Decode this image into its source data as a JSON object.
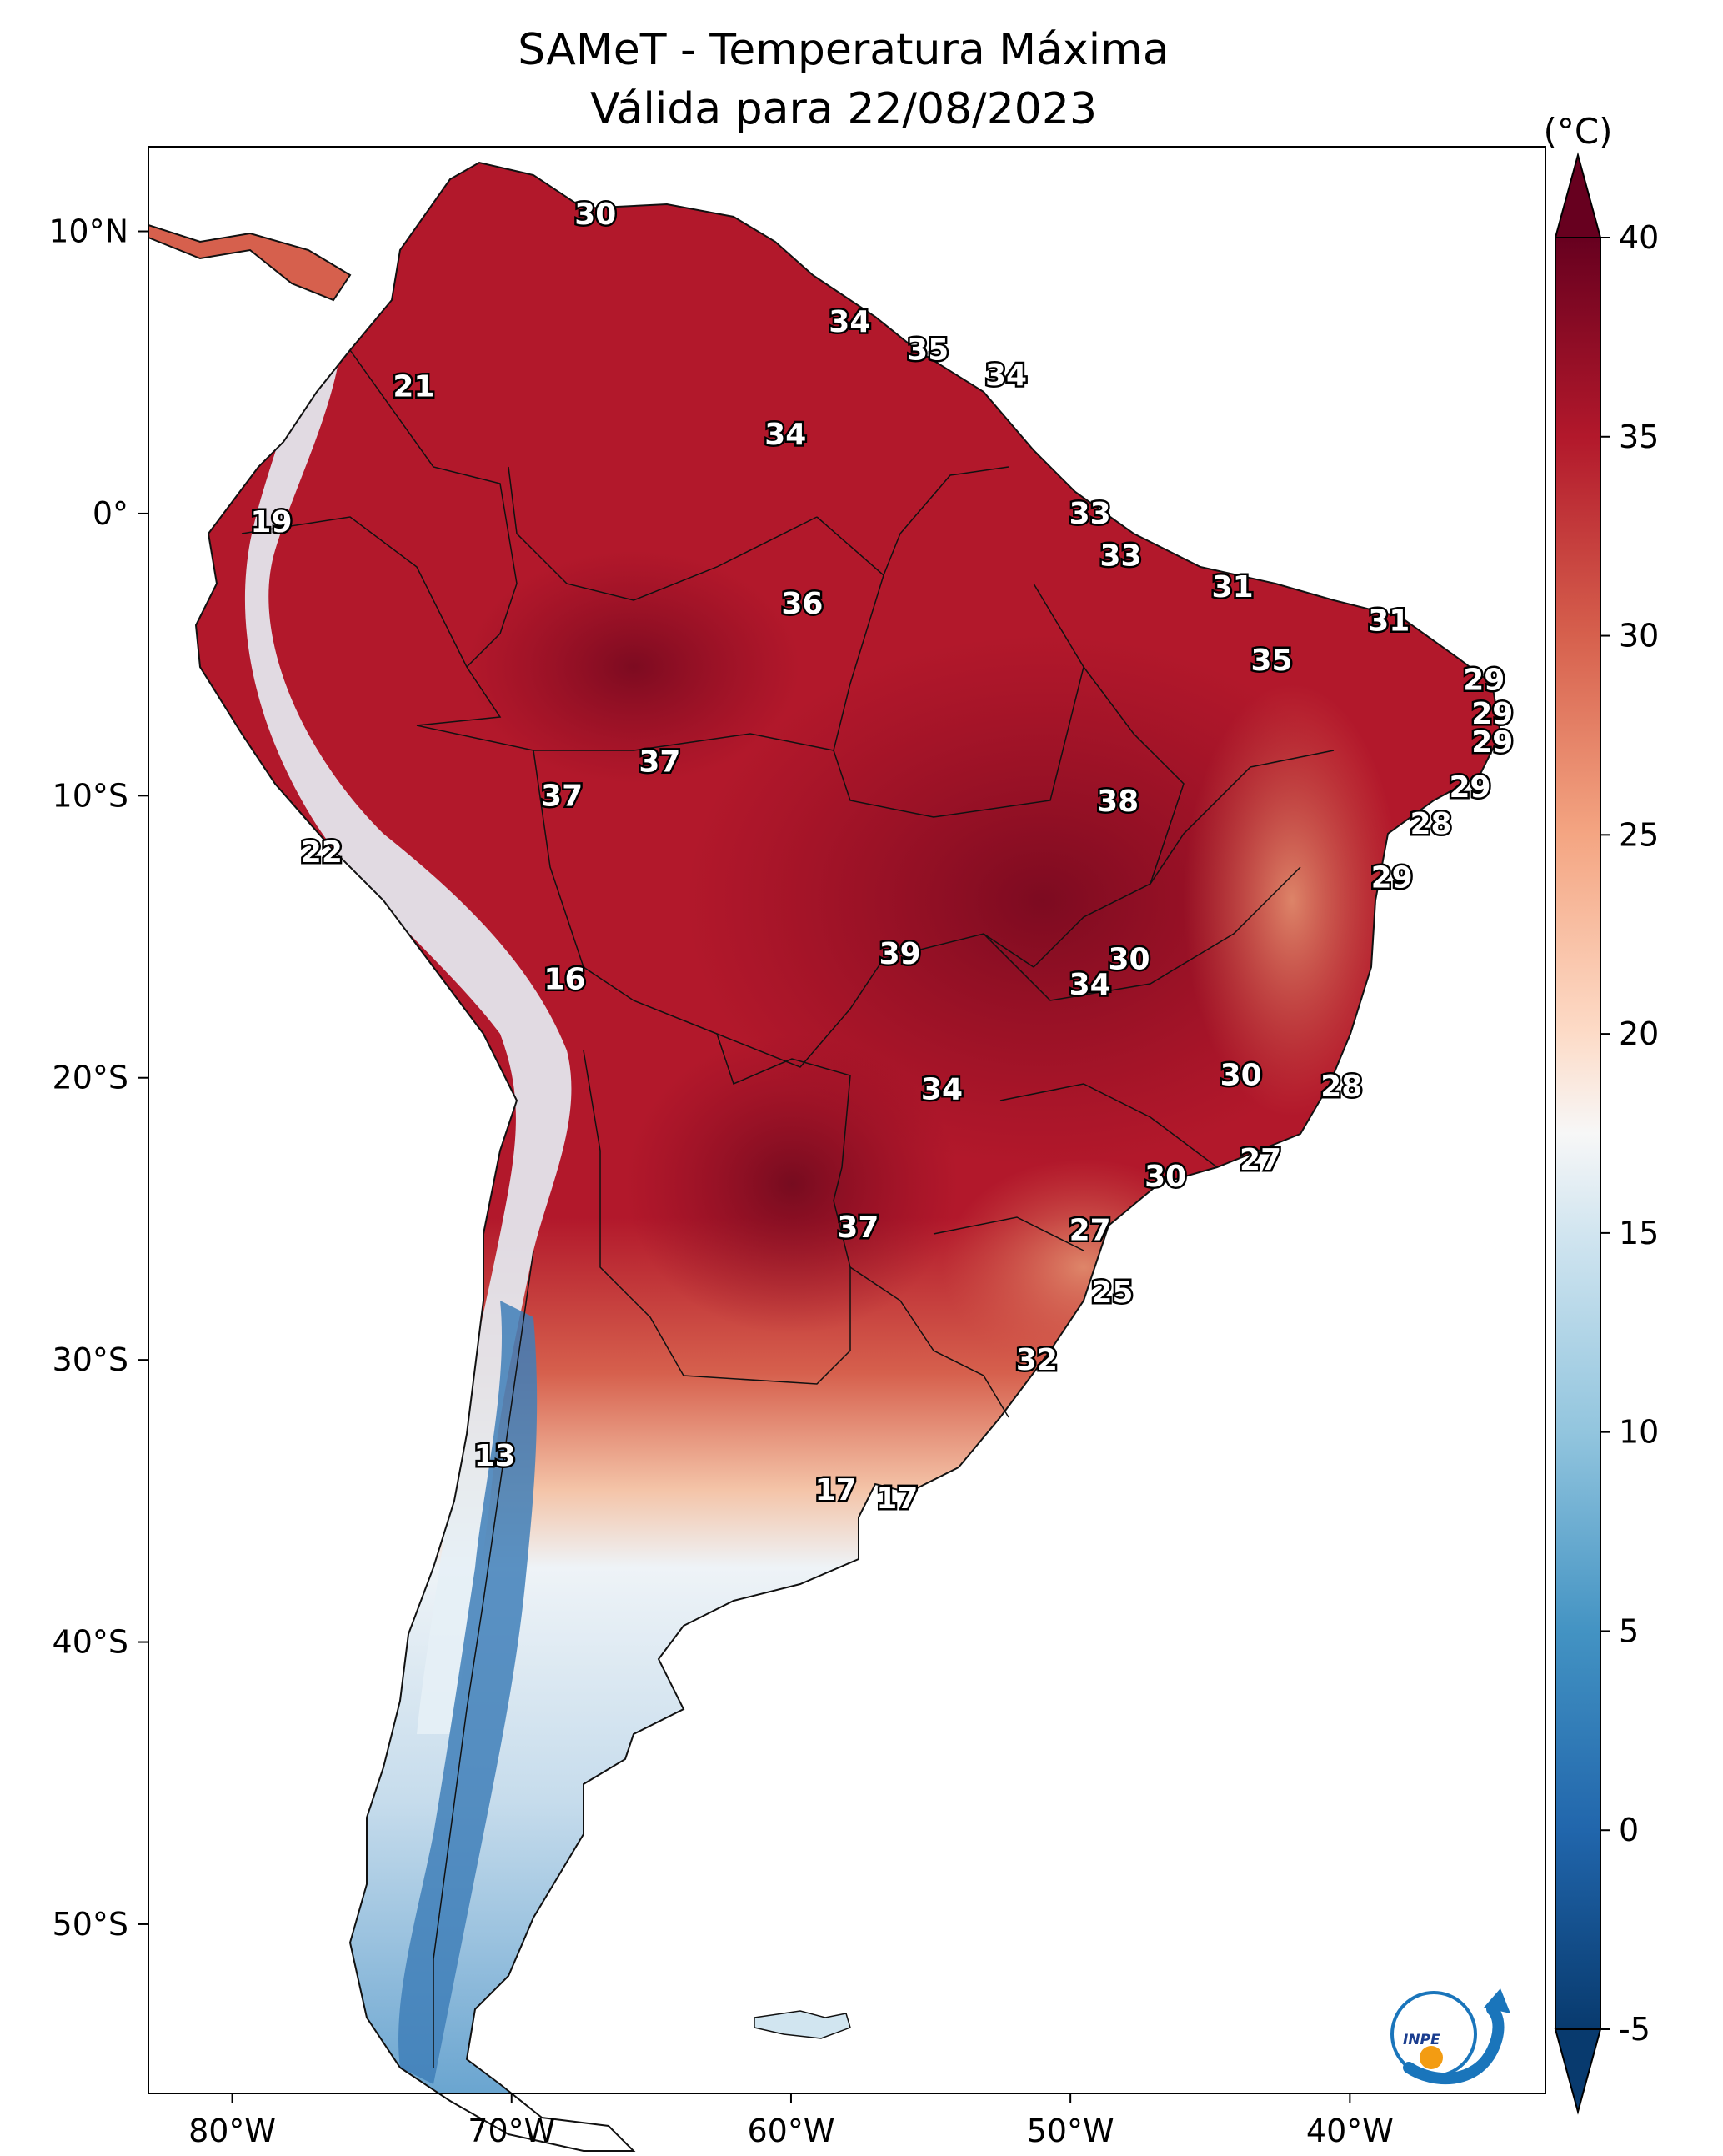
{
  "title": {
    "line1": "SAMeT - Temperatura Máxima",
    "line2": "Válida para 22/08/2023"
  },
  "axes": {
    "lon_ticks": [
      {
        "lon": -80,
        "label": "80°W"
      },
      {
        "lon": -70,
        "label": "70°W"
      },
      {
        "lon": -60,
        "label": "60°W"
      },
      {
        "lon": -50,
        "label": "50°W"
      },
      {
        "lon": -40,
        "label": "40°W"
      }
    ],
    "lat_ticks": [
      {
        "lat": 10,
        "label": "10°N"
      },
      {
        "lat": 0,
        "label": "0°"
      },
      {
        "lat": -10,
        "label": "10°S"
      },
      {
        "lat": -20,
        "label": "20°S"
      },
      {
        "lat": -30,
        "label": "30°S"
      },
      {
        "lat": -40,
        "label": "40°S"
      },
      {
        "lat": -50,
        "label": "50°S"
      }
    ],
    "lon_range": [
      -83,
      -33
    ],
    "lat_range": [
      -56,
      13
    ]
  },
  "colorbar": {
    "unit": "(°C)",
    "min": -5,
    "max": 40,
    "ticks": [
      {
        "value": 40,
        "label": "40"
      },
      {
        "value": 35,
        "label": "35"
      },
      {
        "value": 30,
        "label": "30"
      },
      {
        "value": 25,
        "label": "25"
      },
      {
        "value": 20,
        "label": "20"
      },
      {
        "value": 15,
        "label": "15"
      },
      {
        "value": 10,
        "label": "10"
      },
      {
        "value": 5,
        "label": "5"
      },
      {
        "value": 0,
        "label": "0"
      },
      {
        "value": -5,
        "label": "-5"
      }
    ],
    "colors": {
      "v_m5": "#083a6e",
      "v_0": "#2166ac",
      "v_5": "#4393c3",
      "v_10": "#92c5de",
      "v_15": "#d1e5f0",
      "v_175": "#f7f7f7",
      "v_20": "#fddbc7",
      "v_25": "#f4a582",
      "v_30": "#d6604d",
      "v_35": "#b2182b",
      "v_40": "#67001f"
    }
  },
  "map_colors": {
    "cold_andes": "#d1e5f0",
    "very_cold": "#4b8fc4",
    "warm": "#d6604d",
    "hot": "#b2182b",
    "very_hot": "#8a0c22",
    "mild": "#f4a582"
  },
  "station_values": [
    {
      "lon": -67,
      "lat": 10.6,
      "label": "30"
    },
    {
      "lon": -73.5,
      "lat": 4.5,
      "label": "21"
    },
    {
      "lon": -78.6,
      "lat": -0.3,
      "label": "19"
    },
    {
      "lon": -57.9,
      "lat": 6.8,
      "label": "34"
    },
    {
      "lon": -55.1,
      "lat": 5.8,
      "label": "35"
    },
    {
      "lon": -52.3,
      "lat": 4.9,
      "label": "34"
    },
    {
      "lon": -60.2,
      "lat": 2.8,
      "label": "34"
    },
    {
      "lon": -49.3,
      "lat": 0.0,
      "label": "33"
    },
    {
      "lon": -48.2,
      "lat": -1.5,
      "label": "33"
    },
    {
      "lon": -44.2,
      "lat": -2.6,
      "label": "31"
    },
    {
      "lon": -38.6,
      "lat": -3.8,
      "label": "31"
    },
    {
      "lon": -59.6,
      "lat": -3.2,
      "label": "36"
    },
    {
      "lon": -42.8,
      "lat": -5.2,
      "label": "35"
    },
    {
      "lon": -35.2,
      "lat": -5.9,
      "label": "29"
    },
    {
      "lon": -34.9,
      "lat": -7.1,
      "label": "29"
    },
    {
      "lon": -34.9,
      "lat": -8.1,
      "label": "29"
    },
    {
      "lon": -35.7,
      "lat": -9.7,
      "label": "29"
    },
    {
      "lon": -37.1,
      "lat": -11.0,
      "label": "28"
    },
    {
      "lon": -38.5,
      "lat": -12.9,
      "label": "29"
    },
    {
      "lon": -64.7,
      "lat": -8.8,
      "label": "37"
    },
    {
      "lon": -68.2,
      "lat": -10.0,
      "label": "37"
    },
    {
      "lon": -48.3,
      "lat": -10.2,
      "label": "38"
    },
    {
      "lon": -76.8,
      "lat": -12.0,
      "label": "22"
    },
    {
      "lon": -56.1,
      "lat": -15.6,
      "label": "39"
    },
    {
      "lon": -47.9,
      "lat": -15.8,
      "label": "30"
    },
    {
      "lon": -49.3,
      "lat": -16.7,
      "label": "34"
    },
    {
      "lon": -68.1,
      "lat": -16.5,
      "label": "16"
    },
    {
      "lon": -43.9,
      "lat": -19.9,
      "label": "30"
    },
    {
      "lon": -40.3,
      "lat": -20.3,
      "label": "28"
    },
    {
      "lon": -54.6,
      "lat": -20.4,
      "label": "34"
    },
    {
      "lon": -43.2,
      "lat": -22.9,
      "label": "27"
    },
    {
      "lon": -46.6,
      "lat": -23.5,
      "label": "30"
    },
    {
      "lon": -57.6,
      "lat": -25.3,
      "label": "37"
    },
    {
      "lon": -49.3,
      "lat": -25.4,
      "label": "27"
    },
    {
      "lon": -48.5,
      "lat": -27.6,
      "label": "25"
    },
    {
      "lon": -51.2,
      "lat": -30.0,
      "label": "32"
    },
    {
      "lon": -70.6,
      "lat": -33.4,
      "label": "13"
    },
    {
      "lon": -58.4,
      "lat": -34.6,
      "label": "17"
    },
    {
      "lon": -56.2,
      "lat": -34.9,
      "label": "17"
    }
  ],
  "logo": {
    "text": "INPE",
    "color_blue": "#1a75bb",
    "color_orange": "#f39c12"
  }
}
